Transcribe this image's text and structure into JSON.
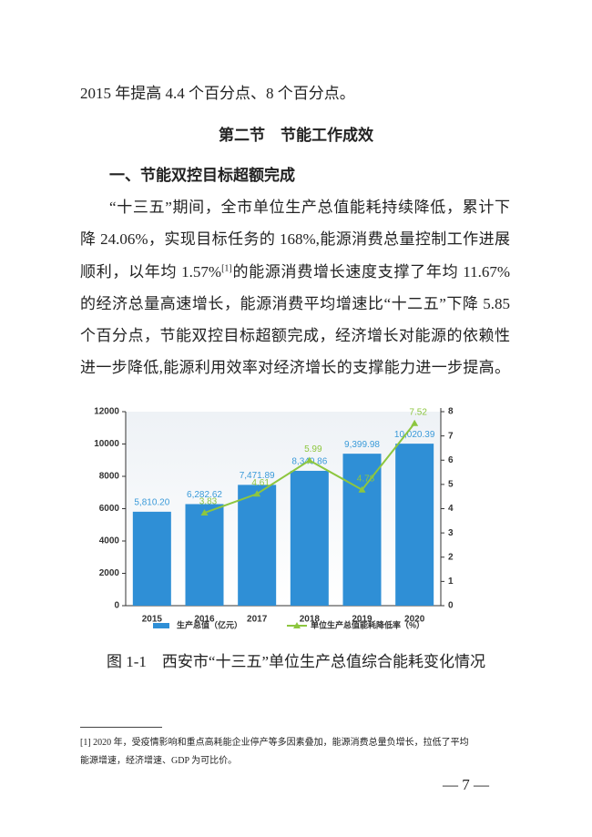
{
  "intro_line": "2015 年提高 4.4 个百分点、8 个百分点。",
  "section_title": "第二节　节能工作成效",
  "subsection_title": "一、节能双控目标超额完成",
  "paragraph": {
    "lines": [
      "“十三五”期间，全市单位生产总值能耗持续降低，累计下",
      "降 24.06%，实现目标任务的 168%,能源消费总量控制工作进展",
      [
        "顺利，以年均 1.57%",
        "[1]",
        "的能源消费增长速度支撑了年均 11.67%"
      ],
      "的经济总量高速增长，能源消费平均增速比“十二五”下降 5.85",
      "个百分点，节能双控目标超额完成，经济增长对能源的依赖性",
      "进一步降低,能源利用效率对经济增长的支撑能力进一步提高。"
    ]
  },
  "chart_data": {
    "type": "bar_line",
    "categories": [
      "2015",
      "2016",
      "2017",
      "2018",
      "2019",
      "2020"
    ],
    "series": [
      {
        "name": "生产总值（亿元）",
        "type": "bar",
        "color": "#2f8fd6",
        "values": [
          5810.2,
          6282.62,
          7471.89,
          8340.86,
          9399.98,
          10020.39
        ],
        "value_labels": [
          "5,810.20",
          "6,282.62",
          "7,471.89",
          "8,340.86",
          "9,399.98",
          "10,020.39"
        ]
      },
      {
        "name": "单位生产总值能耗降低率（%）",
        "type": "line",
        "axis": "y2",
        "color": "#8dc63f",
        "values": [
          null,
          3.83,
          4.61,
          5.99,
          4.78,
          7.52
        ]
      }
    ],
    "ylim": [
      0,
      12000
    ],
    "yticks": [
      0,
      2000,
      4000,
      6000,
      8000,
      10000,
      12000
    ],
    "y2lim": [
      0,
      8
    ],
    "y2ticks": [
      0,
      1,
      2,
      3,
      4,
      5,
      6,
      7,
      8
    ],
    "grid": false,
    "legend": "bottom"
  },
  "figure_caption": "图 1-1　西安市“十三五”单位生产总值综合能耗变化情况",
  "footnote": [
    "[1] 2020 年，受疫情影响和重点高耗能企业停产等多因素叠加，能源消费总量负增长，拉低了平均",
    "能源增速，经济增速、GDP 为可比价。"
  ],
  "page_number": "— 7 —"
}
